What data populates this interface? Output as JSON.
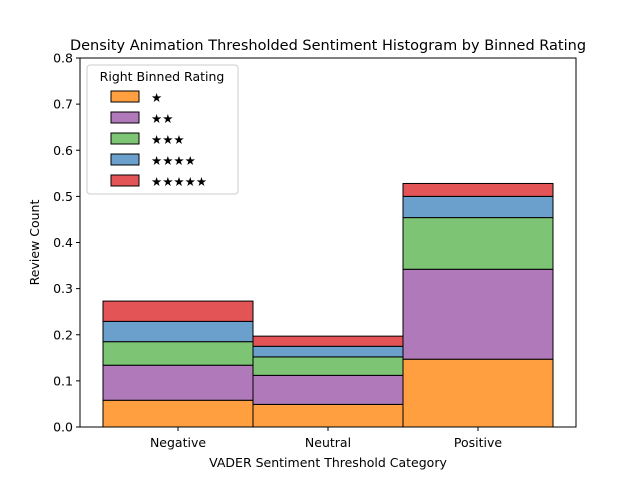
{
  "chart_data": {
    "type": "bar",
    "stacked": true,
    "title": "Density Animation Thresholded Sentiment Histogram by Binned Rating",
    "xlabel": "VADER Sentiment Threshold Category",
    "ylabel": "Review Count",
    "categories": [
      "Negative",
      "Neutral",
      "Positive"
    ],
    "ylim": [
      0,
      0.8
    ],
    "yticks": [
      "0.0",
      "0.1",
      "0.2",
      "0.3",
      "0.4",
      "0.5",
      "0.6",
      "0.7",
      "0.8"
    ],
    "grid": false,
    "legend": {
      "title": "Right Binned Rating",
      "placement": "top-left"
    },
    "series": [
      {
        "name": "★",
        "color": "#ff9f40",
        "values": [
          0.058,
          0.049,
          0.147
        ]
      },
      {
        "name": "★★",
        "color": "#b07aba",
        "values": [
          0.076,
          0.063,
          0.195
        ]
      },
      {
        "name": "★★★",
        "color": "#7dc475",
        "values": [
          0.051,
          0.04,
          0.112
        ]
      },
      {
        "name": "★★★★",
        "color": "#6b9fcc",
        "values": [
          0.044,
          0.023,
          0.046
        ]
      },
      {
        "name": "★★★★★",
        "color": "#e35457",
        "values": [
          0.044,
          0.022,
          0.028
        ]
      }
    ]
  }
}
